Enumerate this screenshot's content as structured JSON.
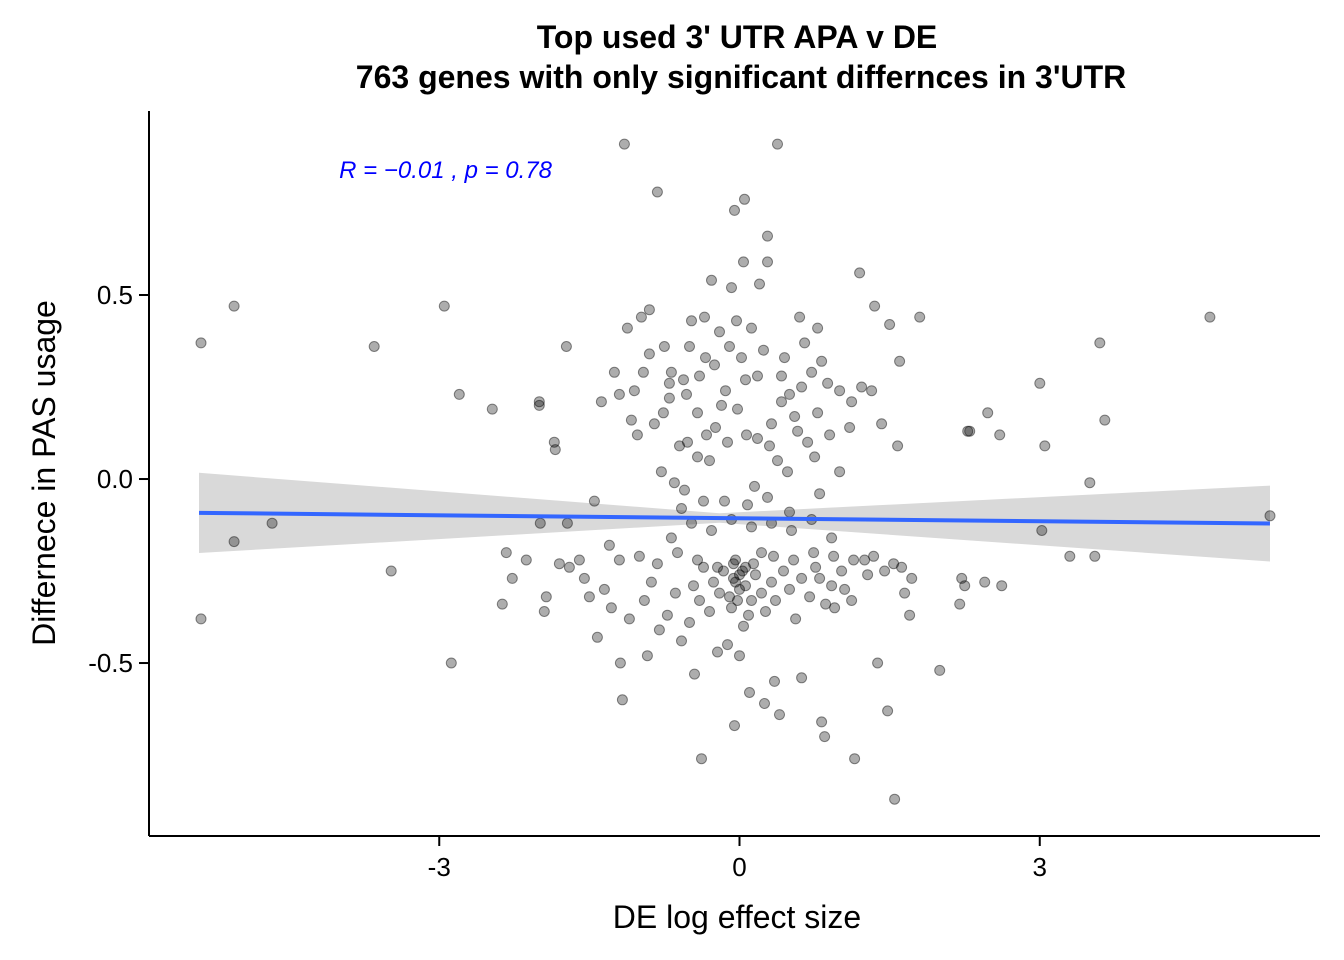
{
  "colors": {
    "points": "#000000",
    "fit_line": "#3366FF",
    "ci_band": "#D9D9D9",
    "annotation": "#0000FF",
    "axis": "#000000"
  },
  "chart_data": {
    "type": "scatter",
    "title_line1": "Top used 3' UTR APA v DE",
    "title_line2": "763 genes with only significant differnces in 3'UTR",
    "xlabel": "DE log effect size",
    "ylabel": "Differnece in PAS usage",
    "xlim": [
      -5.9,
      5.8
    ],
    "ylim": [
      -0.97,
      1.0
    ],
    "x_ticks": [
      -3,
      0,
      3
    ],
    "x_tick_labels": [
      "-3",
      "0",
      "3"
    ],
    "y_ticks": [
      -0.5,
      0.0,
      0.5
    ],
    "y_tick_labels": [
      "-0.5",
      "0.0",
      "0.5"
    ],
    "grid": false,
    "annotation": {
      "text": "R = −0.01 , p = 0.78",
      "x": -4.0,
      "y": 0.84
    },
    "fit": {
      "x": [
        -5.4,
        5.3
      ],
      "y": [
        -0.092,
        -0.121
      ],
      "ci_upper": [
        0.017,
        -0.018
      ],
      "ci_lower": [
        -0.201,
        -0.224
      ],
      "ci_narrow": {
        "x": -0.2,
        "upper": -0.093,
        "lower": -0.119
      }
    },
    "points": [
      [
        -5.38,
        0.37
      ],
      [
        -5.38,
        -0.38
      ],
      [
        -5.05,
        0.47
      ],
      [
        -5.05,
        -0.17
      ],
      [
        -4.67,
        -0.12
      ],
      [
        -3.65,
        0.36
      ],
      [
        -3.48,
        -0.25
      ],
      [
        -2.95,
        0.47
      ],
      [
        -2.88,
        -0.5
      ],
      [
        -2.8,
        0.23
      ],
      [
        -2.47,
        0.19
      ],
      [
        -2.37,
        -0.34
      ],
      [
        -2.33,
        -0.2
      ],
      [
        -2.27,
        -0.27
      ],
      [
        -2.13,
        -0.22
      ],
      [
        -2.0,
        0.21
      ],
      [
        -2.0,
        0.2
      ],
      [
        -1.99,
        -0.12
      ],
      [
        -1.95,
        -0.36
      ],
      [
        -1.93,
        -0.32
      ],
      [
        -1.85,
        0.1
      ],
      [
        -1.84,
        0.08
      ],
      [
        -1.8,
        -0.23
      ],
      [
        -1.73,
        0.36
      ],
      [
        -1.72,
        -0.12
      ],
      [
        -1.7,
        -0.24
      ],
      [
        -1.5,
        -0.32
      ],
      [
        -1.45,
        -0.06
      ],
      [
        -1.42,
        -0.43
      ],
      [
        -1.38,
        0.21
      ],
      [
        -1.35,
        -0.3
      ],
      [
        -1.3,
        -0.18
      ],
      [
        -1.25,
        0.29
      ],
      [
        -1.2,
        0.23
      ],
      [
        -1.19,
        -0.5
      ],
      [
        -1.17,
        -0.6
      ],
      [
        -1.15,
        0.91
      ],
      [
        -1.12,
        0.41
      ],
      [
        -1.08,
        0.16
      ],
      [
        -1.05,
        0.24
      ],
      [
        -1.02,
        0.12
      ],
      [
        -0.98,
        0.44
      ],
      [
        -0.96,
        0.29
      ],
      [
        -0.92,
        -0.48
      ],
      [
        -0.9,
        0.46
      ],
      [
        -0.85,
        0.15
      ],
      [
        -0.82,
        0.78
      ],
      [
        -0.78,
        0.02
      ],
      [
        -0.75,
        0.36
      ],
      [
        -0.7,
        0.26
      ],
      [
        -0.68,
        0.29
      ],
      [
        -0.65,
        -0.01
      ],
      [
        -0.6,
        0.09
      ],
      [
        -0.55,
        -0.03
      ],
      [
        -0.53,
        0.23
      ],
      [
        -0.5,
        0.36
      ],
      [
        -0.48,
        0.43
      ],
      [
        -0.45,
        -0.53
      ],
      [
        -0.42,
        0.18
      ],
      [
        -0.4,
        0.28
      ],
      [
        -0.38,
        -0.76
      ],
      [
        -0.35,
        0.44
      ],
      [
        -0.33,
        0.12
      ],
      [
        -0.3,
        0.05
      ],
      [
        -0.28,
        0.54
      ],
      [
        -0.25,
        0.31
      ],
      [
        -0.22,
        -0.47
      ],
      [
        -0.2,
        0.4
      ],
      [
        -0.18,
        0.2
      ],
      [
        -0.15,
        -0.06
      ],
      [
        -0.12,
        -0.45
      ],
      [
        -0.1,
        0.36
      ],
      [
        -0.08,
        0.52
      ],
      [
        -0.05,
        0.73
      ],
      [
        -0.05,
        -0.67
      ],
      [
        -0.03,
        0.43
      ],
      [
        -0.02,
        0.19
      ],
      [
        0.0,
        -0.48
      ],
      [
        0.02,
        0.33
      ],
      [
        0.04,
        0.59
      ],
      [
        0.05,
        0.76
      ],
      [
        0.07,
        0.12
      ],
      [
        0.1,
        -0.58
      ],
      [
        0.12,
        0.41
      ],
      [
        0.15,
        -0.02
      ],
      [
        0.18,
        0.28
      ],
      [
        0.2,
        0.53
      ],
      [
        0.22,
        -0.2
      ],
      [
        0.25,
        -0.61
      ],
      [
        0.28,
        0.66
      ],
      [
        0.28,
        0.59
      ],
      [
        0.3,
        0.09
      ],
      [
        0.32,
        0.15
      ],
      [
        0.35,
        -0.55
      ],
      [
        0.38,
        0.91
      ],
      [
        0.4,
        -0.64
      ],
      [
        0.42,
        0.21
      ],
      [
        0.45,
        0.33
      ],
      [
        0.5,
        0.23
      ],
      [
        0.55,
        0.17
      ],
      [
        0.6,
        0.44
      ],
      [
        0.62,
        -0.54
      ],
      [
        0.65,
        0.37
      ],
      [
        0.68,
        0.1
      ],
      [
        0.72,
        0.29
      ],
      [
        0.75,
        0.06
      ],
      [
        0.78,
        0.41
      ],
      [
        0.8,
        -0.27
      ],
      [
        0.82,
        -0.66
      ],
      [
        0.85,
        -0.7
      ],
      [
        0.88,
        0.26
      ],
      [
        0.9,
        0.12
      ],
      [
        0.95,
        -0.35
      ],
      [
        1.0,
        0.02
      ],
      [
        1.0,
        0.24
      ],
      [
        1.05,
        -0.3
      ],
      [
        1.1,
        0.14
      ],
      [
        1.12,
        0.21
      ],
      [
        1.15,
        -0.76
      ],
      [
        1.2,
        0.56
      ],
      [
        1.22,
        0.25
      ],
      [
        1.28,
        -0.26
      ],
      [
        1.32,
        0.24
      ],
      [
        1.35,
        0.47
      ],
      [
        1.38,
        -0.5
      ],
      [
        1.42,
        0.15
      ],
      [
        1.48,
        -0.63
      ],
      [
        1.5,
        0.42
      ],
      [
        1.55,
        -0.87
      ],
      [
        1.58,
        0.09
      ],
      [
        1.6,
        0.32
      ],
      [
        1.62,
        -0.24
      ],
      [
        1.65,
        -0.31
      ],
      [
        1.7,
        -0.37
      ],
      [
        1.8,
        0.44
      ],
      [
        2.0,
        -0.52
      ],
      [
        2.2,
        -0.34
      ],
      [
        2.22,
        -0.27
      ],
      [
        2.25,
        -0.29
      ],
      [
        2.28,
        0.13
      ],
      [
        2.3,
        0.13
      ],
      [
        2.45,
        -0.28
      ],
      [
        2.48,
        0.18
      ],
      [
        2.6,
        0.12
      ],
      [
        2.62,
        -0.29
      ],
      [
        3.0,
        0.26
      ],
      [
        3.02,
        -0.14
      ],
      [
        3.05,
        0.09
      ],
      [
        3.3,
        -0.21
      ],
      [
        3.5,
        -0.01
      ],
      [
        3.55,
        -0.21
      ],
      [
        3.6,
        0.37
      ],
      [
        3.65,
        0.16
      ],
      [
        4.7,
        0.44
      ],
      [
        5.3,
        -0.1
      ],
      [
        -1.6,
        -0.22
      ],
      [
        -1.55,
        -0.27
      ],
      [
        -1.28,
        -0.35
      ],
      [
        -1.1,
        -0.38
      ],
      [
        -0.95,
        -0.33
      ],
      [
        -0.88,
        -0.28
      ],
      [
        -0.8,
        -0.41
      ],
      [
        -0.72,
        -0.37
      ],
      [
        -0.64,
        -0.31
      ],
      [
        -0.58,
        -0.44
      ],
      [
        -0.5,
        -0.39
      ],
      [
        -0.46,
        -0.29
      ],
      [
        -0.4,
        -0.33
      ],
      [
        -0.36,
        -0.24
      ],
      [
        -0.3,
        -0.36
      ],
      [
        -0.26,
        -0.28
      ],
      [
        -0.2,
        -0.31
      ],
      [
        -0.16,
        -0.25
      ],
      [
        -0.1,
        -0.32
      ],
      [
        -0.06,
        -0.27
      ],
      [
        0.06,
        -0.29
      ],
      [
        0.12,
        -0.33
      ],
      [
        0.16,
        -0.26
      ],
      [
        0.22,
        -0.31
      ],
      [
        0.26,
        -0.36
      ],
      [
        0.32,
        -0.28
      ],
      [
        0.36,
        -0.33
      ],
      [
        0.44,
        -0.25
      ],
      [
        0.5,
        -0.3
      ],
      [
        0.56,
        -0.38
      ],
      [
        0.62,
        -0.27
      ],
      [
        0.7,
        -0.32
      ],
      [
        0.76,
        -0.24
      ],
      [
        0.86,
        -0.34
      ],
      [
        0.92,
        -0.29
      ],
      [
        1.02,
        -0.25
      ],
      [
        1.12,
        -0.33
      ],
      [
        1.25,
        -0.22
      ],
      [
        1.45,
        -0.25
      ],
      [
        1.72,
        -0.27
      ],
      [
        -1.2,
        -0.22
      ],
      [
        -1.0,
        -0.21
      ],
      [
        -0.82,
        -0.23
      ],
      [
        -0.62,
        -0.2
      ],
      [
        -0.42,
        -0.22
      ],
      [
        -0.22,
        -0.24
      ],
      [
        -0.04,
        -0.22
      ],
      [
        0.14,
        -0.23
      ],
      [
        0.34,
        -0.21
      ],
      [
        0.54,
        -0.22
      ],
      [
        0.74,
        -0.2
      ],
      [
        0.94,
        -0.21
      ],
      [
        1.14,
        -0.22
      ],
      [
        1.34,
        -0.21
      ],
      [
        1.54,
        -0.23
      ],
      [
        -0.68,
        -0.16
      ],
      [
        -0.48,
        -0.12
      ],
      [
        -0.28,
        -0.14
      ],
      [
        -0.08,
        -0.11
      ],
      [
        0.12,
        -0.13
      ],
      [
        0.32,
        -0.12
      ],
      [
        0.52,
        -0.14
      ],
      [
        0.72,
        -0.11
      ],
      [
        0.92,
        -0.16
      ],
      [
        -0.58,
        -0.08
      ],
      [
        -0.36,
        -0.06
      ],
      [
        0.08,
        -0.07
      ],
      [
        0.28,
        -0.05
      ],
      [
        0.5,
        -0.09
      ],
      [
        0.8,
        -0.04
      ],
      [
        -0.9,
        0.34
      ],
      [
        -0.7,
        0.22
      ],
      [
        -0.56,
        0.27
      ],
      [
        -0.34,
        0.33
      ],
      [
        -0.14,
        0.24
      ],
      [
        0.06,
        0.27
      ],
      [
        0.24,
        0.35
      ],
      [
        0.42,
        0.28
      ],
      [
        0.62,
        0.25
      ],
      [
        0.82,
        0.32
      ],
      [
        -0.76,
        0.18
      ],
      [
        -0.52,
        0.1
      ],
      [
        -0.24,
        0.14
      ],
      [
        -0.12,
        0.1
      ],
      [
        0.18,
        0.11
      ],
      [
        0.38,
        0.05
      ],
      [
        0.58,
        0.13
      ],
      [
        0.78,
        0.18
      ],
      [
        -0.42,
        0.06
      ],
      [
        0.48,
        0.02
      ],
      [
        -0.04,
        -0.28
      ],
      [
        0.0,
        -0.3
      ],
      [
        0.03,
        -0.25
      ],
      [
        -0.08,
        -0.35
      ],
      [
        0.09,
        -0.37
      ],
      [
        0.04,
        -0.4
      ],
      [
        -0.02,
        -0.33
      ],
      [
        0.0,
        -0.26
      ],
      [
        0.06,
        -0.24
      ],
      [
        -0.06,
        -0.23
      ]
    ]
  }
}
